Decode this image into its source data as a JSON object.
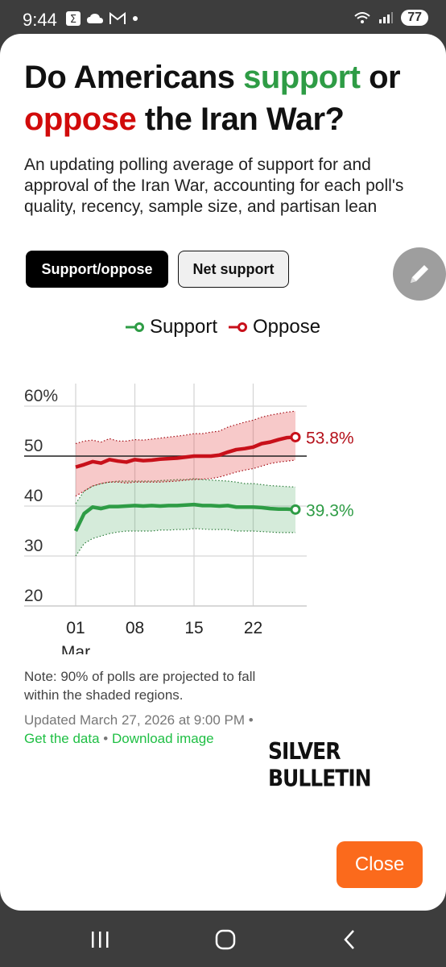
{
  "status_bar": {
    "time": "9:44",
    "battery": "77"
  },
  "dialog": {
    "title": {
      "part1": "Do Americans ",
      "support_word": "support",
      "part2": " or ",
      "oppose_word": "oppose",
      "part3": " the Iran War?"
    },
    "subtitle": "An updating polling average of support for and approval of the Iran War, accounting for each poll's quality, recency, sample size, and partisan lean",
    "toggle": {
      "active": "Support/oppose",
      "inactive": "Net support"
    },
    "legend": {
      "support": "Support",
      "oppose": "Oppose"
    },
    "note": "Note: 90% of polls are projected to fall within the shaded regions.",
    "updated": {
      "text": "Updated March 27, 2026 at 9:00 PM • ",
      "link1": "Get the data",
      "sep": " • ",
      "link2": "Download image"
    },
    "brand": "SILVER BULLETIN",
    "close_label": "Close"
  },
  "colors": {
    "support": "#2e9c45",
    "oppose": "#c8101a",
    "close_button": "#fb6a1c"
  },
  "chart_data": {
    "type": "line",
    "ylim": [
      20,
      60
    ],
    "y_ticks": [
      "60%",
      "50",
      "40",
      "30",
      "20"
    ],
    "x_ticks": [
      "01",
      "08",
      "15",
      "22"
    ],
    "x_tick_sublabel": "Mar",
    "reference_line": 50,
    "x": [
      1,
      2,
      3,
      4,
      5,
      6,
      7,
      8,
      9,
      10,
      11,
      12,
      13,
      14,
      15,
      16,
      17,
      18,
      19,
      20,
      21,
      22,
      23,
      24,
      25,
      26,
      27
    ],
    "series": [
      {
        "name": "Support",
        "end_label": "39.3%",
        "values": [
          35.0,
          38.5,
          39.8,
          39.5,
          39.9,
          39.9,
          40.0,
          40.1,
          40.0,
          40.1,
          40.0,
          40.1,
          40.1,
          40.2,
          40.3,
          40.1,
          40.1,
          40.0,
          40.1,
          39.8,
          39.8,
          39.8,
          39.7,
          39.5,
          39.4,
          39.4,
          39.3
        ],
        "lower": [
          30.0,
          32.5,
          33.5,
          34.0,
          34.5,
          34.8,
          35.0,
          35.0,
          35.0,
          35.0,
          35.2,
          35.2,
          35.3,
          35.3,
          35.5,
          35.4,
          35.3,
          35.3,
          35.3,
          35.0,
          35.0,
          35.0,
          34.9,
          34.8,
          34.7,
          34.7,
          34.7
        ],
        "upper": [
          40.5,
          43.0,
          44.0,
          44.5,
          44.8,
          45.0,
          45.0,
          45.0,
          45.0,
          45.0,
          45.1,
          45.2,
          45.3,
          45.3,
          45.5,
          45.3,
          45.2,
          45.1,
          45.0,
          44.8,
          44.5,
          44.5,
          44.3,
          44.1,
          44.0,
          43.9,
          43.8
        ]
      },
      {
        "name": "Oppose",
        "end_label": "53.8%",
        "values": [
          47.8,
          48.3,
          48.9,
          48.6,
          49.3,
          49.0,
          48.8,
          49.3,
          49.1,
          49.2,
          49.4,
          49.5,
          49.6,
          49.8,
          50.0,
          50.0,
          50.0,
          50.2,
          50.8,
          51.3,
          51.5,
          51.8,
          52.5,
          52.8,
          53.3,
          53.7,
          53.8
        ],
        "lower": [
          42.0,
          43.0,
          44.0,
          44.5,
          44.8,
          44.8,
          44.6,
          44.8,
          44.8,
          44.8,
          44.8,
          44.9,
          45.0,
          45.2,
          45.3,
          45.4,
          45.5,
          45.8,
          46.3,
          46.8,
          47.2,
          47.5,
          48.0,
          48.5,
          48.8,
          49.0,
          49.2
        ],
        "upper": [
          52.5,
          53.0,
          53.2,
          52.8,
          53.5,
          53.0,
          53.0,
          53.3,
          53.2,
          53.4,
          53.6,
          53.8,
          54.0,
          54.2,
          54.5,
          54.5,
          54.8,
          55.0,
          55.8,
          56.3,
          56.8,
          57.2,
          57.8,
          58.2,
          58.5,
          58.8,
          59.0
        ]
      }
    ]
  }
}
